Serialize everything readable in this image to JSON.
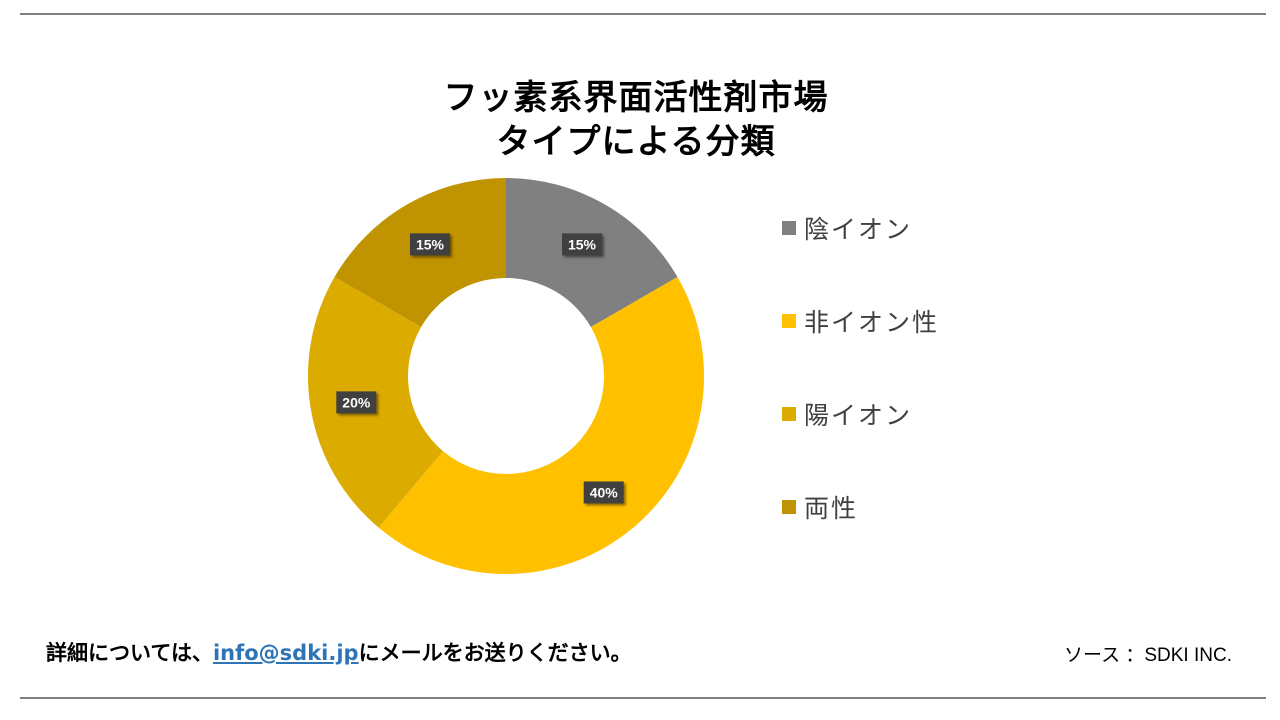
{
  "title_line1": "フッ素系界面活性剤市場",
  "title_line2": "タイプによる分類",
  "chart_data": {
    "type": "pie",
    "donut": true,
    "categories": [
      "陰イオン",
      "非イオン性",
      "陽イオン",
      "両性"
    ],
    "values": [
      15,
      40,
      20,
      15
    ],
    "data_labels": [
      "15%",
      "40%",
      "20%",
      "15%"
    ],
    "colors": [
      "#808080",
      "#ffc000",
      "#dcab00",
      "#c09300"
    ],
    "legend_position": "right"
  },
  "footer": {
    "prefix": "詳細については、",
    "email": "info@sdki.jp",
    "suffix": "にメールをお送りください。",
    "source": "ソース ：SDKI INC."
  }
}
